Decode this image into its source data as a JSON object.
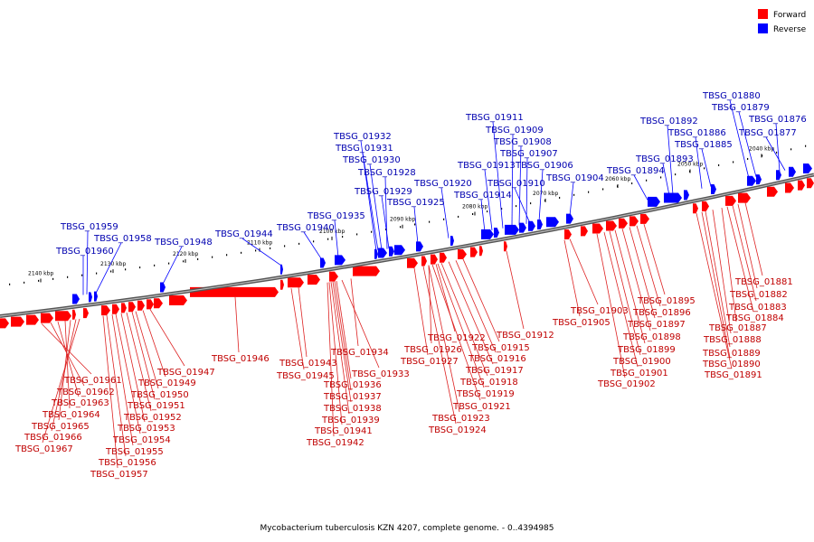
{
  "legend": {
    "forward_label": "Forward",
    "reverse_label": "Reverse",
    "forward_color": "#ff0000",
    "reverse_color": "#0000ff"
  },
  "caption": "Mycobacterium tuberculosis KZN 4207, complete genome. - 0..4394985",
  "axis_ticks": [
    "2140 kbp",
    "2130 kbp",
    "2120 kbp",
    "2110 kbp",
    "2100 kbp",
    "2090 kbp",
    "2080 kbp",
    "2070 kbp",
    "2060 kbp",
    "2050 kbp",
    "2040 kbp"
  ],
  "reverse_genes": [
    "TBSG_01959",
    "TBSG_01960",
    "TBSG_01958",
    "TBSG_01948",
    "TBSG_01944",
    "TBSG_01940",
    "TBSG_01935",
    "TBSG_01932",
    "TBSG_01931",
    "TBSG_01930",
    "TBSG_01928",
    "TBSG_01929",
    "TBSG_01925",
    "TBSG_01920",
    "TBSG_01914",
    "TBSG_01913",
    "TBSG_01911",
    "TBSG_01909",
    "TBSG_01908",
    "TBSG_01907",
    "TBSG_01910",
    "TBSG_01906",
    "TBSG_01904",
    "TBSG_01894",
    "TBSG_01893",
    "TBSG_01892",
    "TBSG_01886",
    "TBSG_01885",
    "TBSG_01880",
    "TBSG_01879",
    "TBSG_01876",
    "TBSG_01877"
  ],
  "forward_genes": [
    "TBSG_01961",
    "TBSG_01962",
    "TBSG_01963",
    "TBSG_01964",
    "TBSG_01965",
    "TBSG_01966",
    "TBSG_01967",
    "TBSG_01947",
    "TBSG_01949",
    "TBSG_01950",
    "TBSG_01951",
    "TBSG_01952",
    "TBSG_01953",
    "TBSG_01954",
    "TBSG_01955",
    "TBSG_01956",
    "TBSG_01957",
    "TBSG_01946",
    "TBSG_01943",
    "TBSG_01945",
    "TBSG_01934",
    "TBSG_01933",
    "TBSG_01936",
    "TBSG_01937",
    "TBSG_01938",
    "TBSG_01939",
    "TBSG_01941",
    "TBSG_01942",
    "TBSG_01922",
    "TBSG_01926",
    "TBSG_01927",
    "TBSG_01915",
    "TBSG_01916",
    "TBSG_01917",
    "TBSG_01918",
    "TBSG_01919",
    "TBSG_01921",
    "TBSG_01923",
    "TBSG_01924",
    "TBSG_01912",
    "TBSG_01903",
    "TBSG_01905",
    "TBSG_01895",
    "TBSG_01896",
    "TBSG_01897",
    "TBSG_01898",
    "TBSG_01899",
    "TBSG_01900",
    "TBSG_01901",
    "TBSG_01902",
    "TBSG_01881",
    "TBSG_01882",
    "TBSG_01883",
    "TBSG_01884",
    "TBSG_01887",
    "TBSG_01888",
    "TBSG_01889",
    "TBSG_01890",
    "TBSG_01891"
  ]
}
